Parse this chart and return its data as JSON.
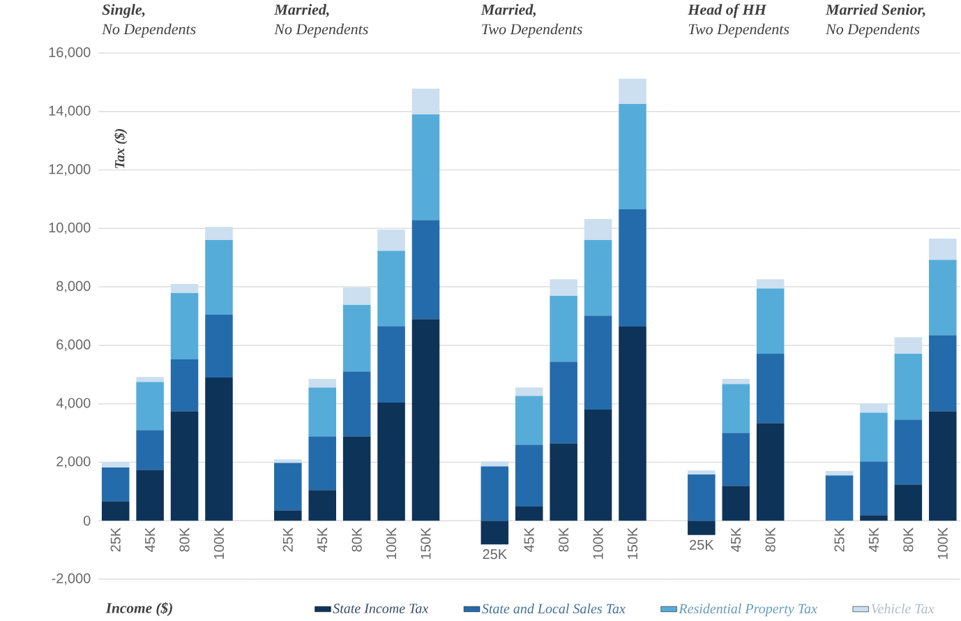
{
  "chart_data": [
    {
      "type": "bar",
      "stacked": true,
      "title": "Single,",
      "subtitle": "No Dependents",
      "xlabel": "Income ($)",
      "ylabel": "Tax ($)",
      "categories": [
        "25K",
        "45K",
        "80K",
        "100K"
      ],
      "ylim": [
        -2000,
        16000
      ],
      "yticks": [
        {
          "value": -2000,
          "label": "-2,000"
        },
        {
          "value": 0,
          "label": "0"
        },
        {
          "value": 2000,
          "label": "2,000"
        },
        {
          "value": 4000,
          "label": "4,000"
        },
        {
          "value": 6000,
          "label": "6,000"
        },
        {
          "value": 8000,
          "label": "8,000"
        },
        {
          "value": 10000,
          "label": "10,000"
        },
        {
          "value": 12000,
          "label": "12,000"
        },
        {
          "value": 14000,
          "label": "14,000"
        },
        {
          "value": 16000,
          "label": "16,000"
        }
      ],
      "grid": "y",
      "legend": "bottom",
      "series": [
        {
          "name": "State Income Tax",
          "color": "#0e3358",
          "values": [
            670,
            1740,
            3750,
            4900
          ]
        },
        {
          "name": "State and Local Sales Tax",
          "color": "#246bab",
          "values": [
            1150,
            1360,
            1770,
            2150
          ]
        },
        {
          "name": "Residential Property Tax",
          "color": "#56acd9",
          "values": [
            null,
            1650,
            2270,
            2550
          ]
        },
        {
          "name": "Vehicle Tax",
          "color": "#cbdff0",
          "values": [
            185,
            170,
            310,
            450
          ]
        }
      ]
    },
    {
      "type": "bar",
      "stacked": true,
      "title": "Married,",
      "subtitle": "No Dependents",
      "categories": [
        "25K",
        "45K",
        "80K",
        "100K",
        "150K"
      ],
      "ylim": [
        -2000,
        16000
      ],
      "yticks": [
        -2000,
        0,
        2000,
        4000,
        6000,
        8000,
        10000,
        12000,
        14000,
        16000
      ],
      "grid": "y",
      "tick_labels": "x",
      "series": [
        {
          "color": "#0e3358",
          "values": [
            360,
            1050,
            2890,
            4040,
            6900
          ]
        },
        {
          "color": "#246bab",
          "values": [
            1620,
            1840,
            2220,
            2620,
            3390
          ]
        },
        {
          "color": "#56acd9",
          "values": [
            null,
            1670,
            2270,
            2580,
            3610
          ]
        },
        {
          "color": "#cbdff0",
          "values": [
            120,
            290,
            600,
            720,
            880
          ]
        }
      ]
    },
    {
      "type": "bar",
      "stacked": true,
      "title": "Married,",
      "subtitle": "Two Dependents",
      "categories": [
        "25K",
        "45K",
        "80K",
        "100K",
        "150K"
      ],
      "ylim": [
        -2000,
        16000
      ],
      "yticks": [
        -2000,
        0,
        2000,
        4000,
        6000,
        8000,
        10000,
        12000,
        14000,
        16000
      ],
      "grid": "y",
      "tick_labels": "x",
      "series": [
        {
          "color": "#0e3358",
          "values": [
            -810,
            480,
            2650,
            3800,
            6640
          ]
        },
        {
          "color": "#246bab",
          "values": [
            1860,
            2120,
            2790,
            3220,
            4010
          ]
        },
        {
          "color": "#56acd9",
          "values": [
            null,
            1670,
            2250,
            2580,
            3610
          ]
        },
        {
          "color": "#cbdff0",
          "values": [
            170,
            290,
            570,
            720,
            860
          ]
        }
      ]
    },
    {
      "type": "bar",
      "stacked": true,
      "title": "Head of HH",
      "subtitle": "Two Dependents",
      "categories": [
        "25K",
        "45K",
        "80K"
      ],
      "ylim": [
        -2000,
        16000
      ],
      "yticks": [
        -2000,
        0,
        2000,
        4000,
        6000,
        8000,
        10000,
        12000,
        14000,
        16000
      ],
      "grid": "y",
      "tick_labels": "x",
      "series": [
        {
          "color": "#0e3358",
          "values": [
            -490,
            1190,
            3340
          ]
        },
        {
          "color": "#246bab",
          "values": [
            1580,
            1820,
            2370
          ]
        },
        {
          "color": "#56acd9",
          "values": [
            null,
            1670,
            2240
          ]
        },
        {
          "color": "#cbdff0",
          "values": [
            140,
            170,
            310
          ]
        }
      ]
    },
    {
      "type": "bar",
      "stacked": true,
      "title": "Married Senior,",
      "subtitle": "No Dependents",
      "categories": [
        "25K",
        "45K",
        "80K",
        "100K"
      ],
      "ylim": [
        -2000,
        16000
      ],
      "yticks": [
        -2000,
        0,
        2000,
        4000,
        6000,
        8000,
        10000,
        12000,
        14000,
        16000
      ],
      "grid": "y",
      "tick_labels": "x",
      "series": [
        {
          "color": "#0e3358",
          "values": [
            null,
            190,
            1240,
            3750
          ]
        },
        {
          "color": "#246bab",
          "values": [
            1550,
            1840,
            2220,
            2600
          ]
        },
        {
          "color": "#56acd9",
          "values": [
            null,
            1670,
            2250,
            2580
          ]
        },
        {
          "color": "#cbdff0",
          "values": [
            150,
            310,
            570,
            720
          ]
        }
      ]
    }
  ]
}
